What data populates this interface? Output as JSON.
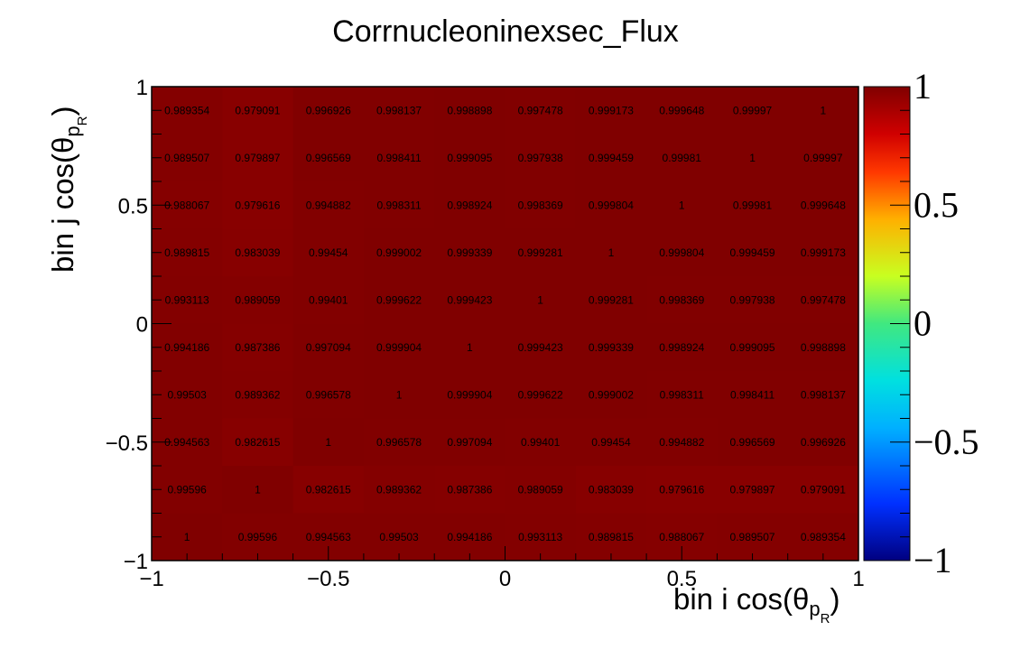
{
  "chart_data": {
    "type": "heatmap",
    "title": "Corrnucleoninexsec_Flux",
    "xlabel": "bin i cos(θ",
    "xlabel_sub": "p",
    "xlabel_subsub": "R",
    "xlabel_close": ")",
    "ylabel": "bin j cos(θ",
    "ylabel_sub": "p",
    "ylabel_subsub": "R",
    "ylabel_close": ")",
    "xlim": [
      -1,
      1
    ],
    "ylim": [
      -1,
      1
    ],
    "zlim": [
      -1,
      1
    ],
    "x_ticks": [
      "−1",
      "−0.5",
      "0",
      "0.5",
      "1"
    ],
    "y_ticks": [
      "−1",
      "−0.5",
      "0",
      "0.5",
      "1"
    ],
    "z_ticks": [
      "−1",
      "−0.5",
      "0",
      "0.5",
      "1"
    ],
    "x_tick_values": [
      -1,
      -0.5,
      0,
      0.5,
      1
    ],
    "y_tick_values": [
      -1,
      -0.5,
      0,
      0.5,
      1
    ],
    "z_tick_values": [
      -1,
      -0.5,
      0,
      0.5,
      1
    ],
    "nbins_x": 10,
    "nbins_y": 10,
    "rows_top_to_bottom": [
      [
        "0.989354",
        "0.979091",
        "0.996926",
        "0.998137",
        "0.998898",
        "0.997478",
        "0.999173",
        "0.999648",
        "0.99997",
        "1"
      ],
      [
        "0.989507",
        "0.979897",
        "0.996569",
        "0.998411",
        "0.999095",
        "0.997938",
        "0.999459",
        "0.99981",
        "1",
        "0.99997"
      ],
      [
        "0.988067",
        "0.979616",
        "0.994882",
        "0.998311",
        "0.998924",
        "0.998369",
        "0.999804",
        "1",
        "0.99981",
        "0.999648"
      ],
      [
        "0.989815",
        "0.983039",
        "0.99454",
        "0.999002",
        "0.999339",
        "0.999281",
        "1",
        "0.999804",
        "0.999459",
        "0.999173"
      ],
      [
        "0.993113",
        "0.989059",
        "0.99401",
        "0.999622",
        "0.999423",
        "1",
        "0.999281",
        "0.998369",
        "0.997938",
        "0.997478"
      ],
      [
        "0.994186",
        "0.987386",
        "0.997094",
        "0.999904",
        "1",
        "0.999423",
        "0.999339",
        "0.998924",
        "0.999095",
        "0.998898"
      ],
      [
        "0.99503",
        "0.989362",
        "0.996578",
        "1",
        "0.999904",
        "0.999622",
        "0.999002",
        "0.998311",
        "0.998411",
        "0.998137"
      ],
      [
        "0.994563",
        "0.982615",
        "1",
        "0.996578",
        "0.997094",
        "0.99401",
        "0.99454",
        "0.994882",
        "0.996569",
        "0.996926"
      ],
      [
        "0.99596",
        "1",
        "0.982615",
        "0.989362",
        "0.987386",
        "0.989059",
        "0.983039",
        "0.979616",
        "0.979897",
        "0.979091"
      ],
      [
        "1",
        "0.99596",
        "0.994563",
        "0.99503",
        "0.994186",
        "0.993113",
        "0.989815",
        "0.988067",
        "0.989507",
        "0.989354"
      ]
    ],
    "palette": [
      "#000080",
      "#0040ff",
      "#00c8ff",
      "#30e8a0",
      "#d8ff20",
      "#ffb000",
      "#ff3800",
      "#c00000",
      "#800000"
    ],
    "grid": false
  }
}
